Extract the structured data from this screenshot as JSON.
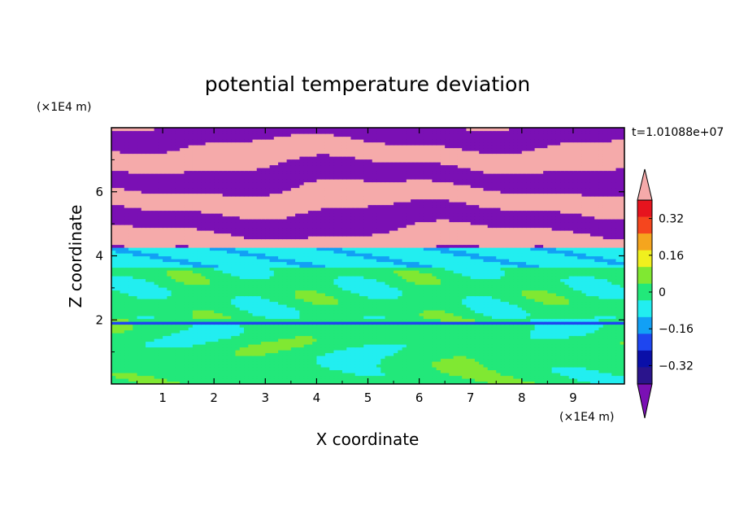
{
  "chart_data": {
    "type": "heatmap",
    "title": "potential temperature deviation",
    "xlabel": "X coordinate",
    "ylabel": "Z coordinate",
    "x_unit": "(×1E4 m)",
    "y_unit": "(×1E4 m)",
    "time_label": "t=1.01088e+07",
    "xlim": [
      0,
      10
    ],
    "ylim": [
      0,
      8
    ],
    "x_ticks": [
      "1",
      "2",
      "3",
      "4",
      "5",
      "6",
      "7",
      "8",
      "9"
    ],
    "y_ticks": [
      "2",
      "4",
      "6"
    ],
    "colorbar": {
      "labels": [
        "0.32",
        "0.16",
        "0",
        "−0.16",
        "−0.32"
      ],
      "label_values": [
        0.32,
        0.16,
        0,
        -0.16,
        -0.32
      ],
      "levels": [
        -0.4,
        -0.32,
        -0.24,
        -0.16,
        -0.08,
        0,
        0.08,
        0.16,
        0.24,
        0.32,
        0.4
      ],
      "colors": [
        "#2a148c",
        "#0a0fa8",
        "#1e46f0",
        "#12a0f5",
        "#22eef0",
        "#22e87a",
        "#80e832",
        "#f0f01e",
        "#f5a51e",
        "#f5461e",
        "#e6141e"
      ],
      "under_color": "#7a10b4",
      "over_color": "#f5aaaa"
    },
    "regions": [
      {
        "zone": "upper stratified layer",
        "z_range": [
          4.3,
          8.0
        ],
        "pattern": "alternating bands of over (pink) and under (purple) values"
      },
      {
        "zone": "transition",
        "z_range": [
          3.6,
          4.3
        ],
        "pattern": "cyan bands near -0.08"
      },
      {
        "zone": "middle layer",
        "z_range": [
          2.0,
          3.6
        ],
        "pattern": "green near 0 with small positive patches"
      },
      {
        "zone": "lower layer",
        "z_range": [
          0.0,
          2.0
        ],
        "pattern": "green/yellow-green cells near 0 to 0.08"
      }
    ]
  }
}
